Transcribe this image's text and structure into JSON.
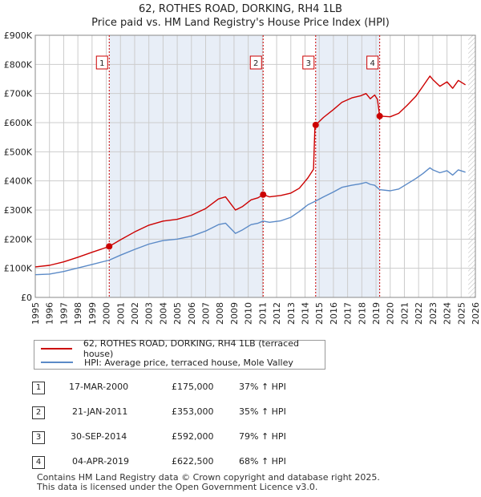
{
  "header": {
    "title_line1": "62, ROTHES ROAD, DORKING, RH4 1LB",
    "title_line2": "Price paid vs. HM Land Registry's House Price Index (HPI)"
  },
  "colors": {
    "property": "#cc0000",
    "hpi": "#5b8ac7",
    "shade": "#e8eef7",
    "vline": "#cc0000",
    "grid": "#cccccc",
    "hatch": "#888888"
  },
  "chart_data": {
    "type": "line",
    "title": "62, ROTHES ROAD, DORKING, RH4 1LB — Price paid vs. HM Land Registry's House Price Index (HPI)",
    "xlim": [
      1995,
      2026
    ],
    "ylim": [
      0,
      900000
    ],
    "y_ticks": [
      {
        "value": 0,
        "label": "£0"
      },
      {
        "value": 100000,
        "label": "£100K"
      },
      {
        "value": 200000,
        "label": "£200K"
      },
      {
        "value": 300000,
        "label": "£300K"
      },
      {
        "value": 400000,
        "label": "£400K"
      },
      {
        "value": 500000,
        "label": "£500K"
      },
      {
        "value": 600000,
        "label": "£600K"
      },
      {
        "value": 700000,
        "label": "£700K"
      },
      {
        "value": 800000,
        "label": "£800K"
      },
      {
        "value": 900000,
        "label": "£900K"
      }
    ],
    "x_ticks": [
      "1995",
      "1996",
      "1997",
      "1998",
      "1999",
      "2000",
      "2001",
      "2002",
      "2003",
      "2004",
      "2005",
      "2006",
      "2007",
      "2008",
      "2009",
      "2010",
      "2011",
      "2012",
      "2013",
      "2014",
      "2015",
      "2016",
      "2017",
      "2018",
      "2019",
      "2020",
      "2021",
      "2022",
      "2023",
      "2024",
      "2025",
      "2026"
    ],
    "shaded_spans": [
      [
        2000.21,
        2011.05
      ],
      [
        2014.75,
        2019.26
      ]
    ],
    "hatched_from": 2025.5,
    "series": [
      {
        "name": "62, ROTHES ROAD, DORKING, RH4 1LB (terraced house)",
        "color": "#cc0000",
        "points": [
          [
            1995.0,
            105000
          ],
          [
            1996.0,
            110000
          ],
          [
            1997.0,
            122000
          ],
          [
            1998.0,
            138000
          ],
          [
            1999.0,
            155000
          ],
          [
            2000.21,
            175000
          ],
          [
            2001.0,
            198000
          ],
          [
            2002.0,
            225000
          ],
          [
            2003.0,
            248000
          ],
          [
            2004.0,
            262000
          ],
          [
            2005.0,
            268000
          ],
          [
            2006.0,
            282000
          ],
          [
            2007.0,
            305000
          ],
          [
            2007.9,
            338000
          ],
          [
            2008.4,
            345000
          ],
          [
            2009.1,
            300000
          ],
          [
            2009.6,
            312000
          ],
          [
            2010.2,
            335000
          ],
          [
            2010.7,
            342000
          ],
          [
            2011.05,
            353000
          ],
          [
            2011.5,
            345000
          ],
          [
            2012.3,
            350000
          ],
          [
            2013.0,
            358000
          ],
          [
            2013.6,
            375000
          ],
          [
            2014.2,
            410000
          ],
          [
            2014.6,
            440000
          ],
          [
            2014.7,
            592000
          ],
          [
            2014.75,
            592000
          ],
          [
            2015.3,
            618000
          ],
          [
            2016.0,
            645000
          ],
          [
            2016.6,
            670000
          ],
          [
            2017.3,
            685000
          ],
          [
            2017.9,
            692000
          ],
          [
            2018.3,
            700000
          ],
          [
            2018.6,
            682000
          ],
          [
            2018.9,
            695000
          ],
          [
            2019.1,
            680000
          ],
          [
            2019.26,
            622500
          ],
          [
            2020.0,
            620000
          ],
          [
            2020.6,
            632000
          ],
          [
            2021.2,
            660000
          ],
          [
            2021.8,
            690000
          ],
          [
            2022.3,
            725000
          ],
          [
            2022.8,
            760000
          ],
          [
            2023.0,
            748000
          ],
          [
            2023.5,
            725000
          ],
          [
            2024.0,
            740000
          ],
          [
            2024.4,
            718000
          ],
          [
            2024.8,
            745000
          ],
          [
            2025.3,
            730000
          ]
        ]
      },
      {
        "name": "HPI: Average price, terraced house, Mole Valley",
        "color": "#5b8ac7",
        "points": [
          [
            1995.0,
            78000
          ],
          [
            1996.0,
            80000
          ],
          [
            1997.0,
            89000
          ],
          [
            1998.0,
            101000
          ],
          [
            1999.0,
            113000
          ],
          [
            2000.21,
            128000
          ],
          [
            2001.0,
            145000
          ],
          [
            2002.0,
            165000
          ],
          [
            2003.0,
            183000
          ],
          [
            2004.0,
            195000
          ],
          [
            2005.0,
            200000
          ],
          [
            2006.0,
            210000
          ],
          [
            2007.0,
            228000
          ],
          [
            2007.9,
            250000
          ],
          [
            2008.4,
            255000
          ],
          [
            2009.1,
            220000
          ],
          [
            2009.6,
            232000
          ],
          [
            2010.2,
            250000
          ],
          [
            2010.7,
            255000
          ],
          [
            2011.05,
            262000
          ],
          [
            2011.5,
            258000
          ],
          [
            2012.3,
            263000
          ],
          [
            2013.0,
            275000
          ],
          [
            2013.6,
            295000
          ],
          [
            2014.2,
            318000
          ],
          [
            2014.75,
            331000
          ],
          [
            2015.3,
            345000
          ],
          [
            2016.0,
            362000
          ],
          [
            2016.6,
            378000
          ],
          [
            2017.3,
            385000
          ],
          [
            2017.9,
            390000
          ],
          [
            2018.3,
            395000
          ],
          [
            2018.6,
            388000
          ],
          [
            2018.9,
            385000
          ],
          [
            2019.26,
            370000
          ],
          [
            2020.0,
            366000
          ],
          [
            2020.6,
            372000
          ],
          [
            2021.2,
            390000
          ],
          [
            2021.8,
            408000
          ],
          [
            2022.3,
            425000
          ],
          [
            2022.8,
            445000
          ],
          [
            2023.0,
            438000
          ],
          [
            2023.5,
            428000
          ],
          [
            2024.0,
            435000
          ],
          [
            2024.4,
            420000
          ],
          [
            2024.8,
            438000
          ],
          [
            2025.3,
            430000
          ]
        ]
      }
    ],
    "sale_markers": [
      {
        "label": "1",
        "x": 2000.21,
        "y": 175000
      },
      {
        "label": "2",
        "x": 2011.05,
        "y": 353000
      },
      {
        "label": "3",
        "x": 2014.75,
        "y": 592000
      },
      {
        "label": "4",
        "x": 2019.26,
        "y": 622500
      }
    ]
  },
  "legend": {
    "property_label": "62, ROTHES ROAD, DORKING, RH4 1LB (terraced house)",
    "hpi_label": "HPI: Average price, terraced house, Mole Valley"
  },
  "sales": [
    {
      "num": "1",
      "date": "17-MAR-2000",
      "price": "£175,000",
      "change": "37% ↑ HPI"
    },
    {
      "num": "2",
      "date": "21-JAN-2011",
      "price": "£353,000",
      "change": "35% ↑ HPI"
    },
    {
      "num": "3",
      "date": "30-SEP-2014",
      "price": "£592,000",
      "change": "79% ↑ HPI"
    },
    {
      "num": "4",
      "date": "04-APR-2019",
      "price": "£622,500",
      "change": "68% ↑ HPI"
    }
  ],
  "footer": {
    "line1": "Contains HM Land Registry data © Crown copyright and database right 2025.",
    "line2": "This data is licensed under the Open Government Licence v3.0."
  }
}
